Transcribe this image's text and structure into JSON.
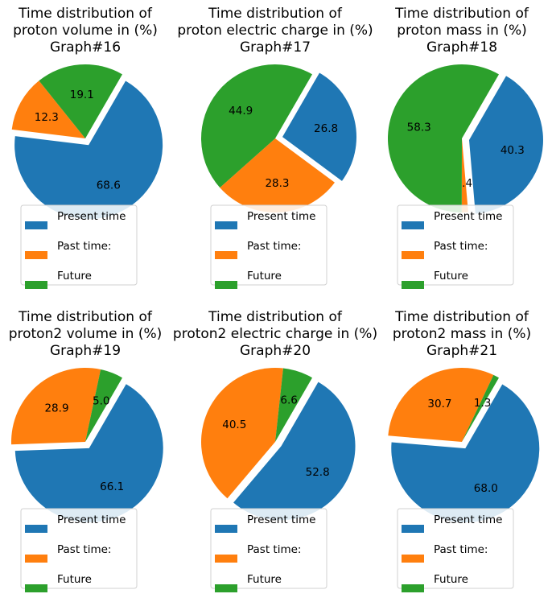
{
  "legend_items": [
    {
      "label": "Present time",
      "color": "#1f77b4"
    },
    {
      "label": "Past time:",
      "color": "#ff7f0e"
    },
    {
      "label": "Future",
      "color": "#2ca02c"
    }
  ],
  "chart_data": [
    {
      "type": "pie",
      "title_lines": [
        "Time distribution of",
        "proton volume in (%)",
        "Graph#16"
      ],
      "slices": [
        {
          "label": "Present time",
          "value": 68.6,
          "color": "#1f77b4",
          "explode": 0.1
        },
        {
          "label": "Past time:",
          "value": 12.3,
          "color": "#ff7f0e",
          "explode": 0
        },
        {
          "label": "Future",
          "value": 19.1,
          "color": "#2ca02c",
          "explode": 0
        }
      ],
      "legend_placement": "lower-center"
    },
    {
      "type": "pie",
      "title_lines": [
        "Time distribution of",
        "proton electric charge in (%)",
        "Graph#17"
      ],
      "slices": [
        {
          "label": "Present time",
          "value": 26.8,
          "color": "#1f77b4",
          "explode": 0.1
        },
        {
          "label": "Past time:",
          "value": 28.3,
          "color": "#ff7f0e",
          "explode": 0
        },
        {
          "label": "Future",
          "value": 44.9,
          "color": "#2ca02c",
          "explode": 0
        }
      ],
      "legend_placement": "lower-center"
    },
    {
      "type": "pie",
      "title_lines": [
        "Time distribution of",
        "proton mass in (%)",
        "Graph#18"
      ],
      "slices": [
        {
          "label": "Present time",
          "value": 40.3,
          "color": "#1f77b4",
          "explode": 0.1
        },
        {
          "label": "Past time:",
          "value": 1.4,
          "color": "#ff7f0e",
          "explode": 0
        },
        {
          "label": "Future",
          "value": 58.3,
          "color": "#2ca02c",
          "explode": 0
        }
      ],
      "legend_placement": "lower-center"
    },
    {
      "type": "pie",
      "title_lines": [
        "Time distribution of",
        "proton2 volume in (%)",
        "Graph#19"
      ],
      "slices": [
        {
          "label": "Present time",
          "value": 66.1,
          "color": "#1f77b4",
          "explode": 0.1
        },
        {
          "label": "Past time:",
          "value": 28.9,
          "color": "#ff7f0e",
          "explode": 0
        },
        {
          "label": "Future",
          "value": 5.0,
          "color": "#2ca02c",
          "explode": 0
        }
      ],
      "legend_placement": "lower-center"
    },
    {
      "type": "pie",
      "title_lines": [
        "Time distribution of",
        "proton2 electric charge in (%)",
        "Graph#20"
      ],
      "slices": [
        {
          "label": "Present time",
          "value": 52.8,
          "color": "#1f77b4",
          "explode": 0.1
        },
        {
          "label": "Past time:",
          "value": 40.5,
          "color": "#ff7f0e",
          "explode": 0
        },
        {
          "label": "Future",
          "value": 6.6,
          "color": "#2ca02c",
          "explode": 0
        }
      ],
      "legend_placement": "lower-center"
    },
    {
      "type": "pie",
      "title_lines": [
        "Time distribution of",
        "proton2 mass in (%)",
        "Graph#21"
      ],
      "slices": [
        {
          "label": "Present time",
          "value": 68.0,
          "color": "#1f77b4",
          "explode": 0.1
        },
        {
          "label": "Past time:",
          "value": 30.7,
          "color": "#ff7f0e",
          "explode": 0
        },
        {
          "label": "Future",
          "value": 1.3,
          "color": "#2ca02c",
          "explode": 0
        }
      ],
      "legend_placement": "lower-center"
    }
  ]
}
